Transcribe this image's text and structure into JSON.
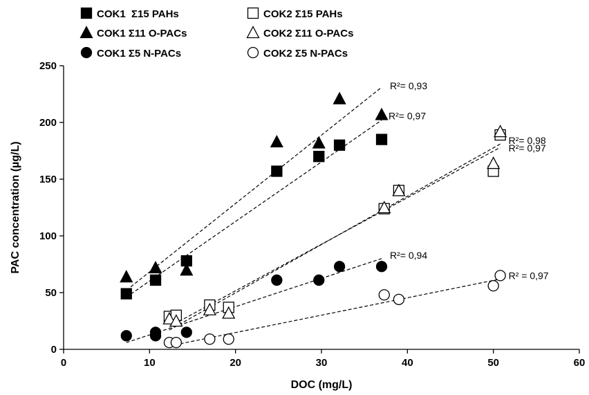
{
  "chart_data": {
    "type": "scatter",
    "title": "",
    "xlabel": "DOC (mg/L)",
    "ylabel": "PAC concentration (µg/L)",
    "xlim": [
      0,
      60
    ],
    "ylim": [
      0,
      250
    ],
    "xticks": [
      "0",
      "10",
      "20",
      "30",
      "40",
      "50",
      "60"
    ],
    "yticks": [
      "0",
      "50",
      "100",
      "150",
      "200",
      "250"
    ],
    "grid": false,
    "legend_position": "top-left",
    "series": [
      {
        "name": "COK1  Σ15 PAHs",
        "marker": "square",
        "filled": true,
        "points": [
          [
            7.3,
            49
          ],
          [
            10.7,
            61
          ],
          [
            14.3,
            78
          ],
          [
            24.8,
            157
          ],
          [
            29.7,
            170
          ],
          [
            32.1,
            180
          ],
          [
            37.0,
            185
          ]
        ],
        "fit": {
          "x": [
            7.3,
            37.0
          ],
          "y": [
            46,
            202
          ]
        },
        "r2_label": "R²= 0,97"
      },
      {
        "name": "COK1 Σ11 O-PACs",
        "marker": "triangle",
        "filled": true,
        "points": [
          [
            7.3,
            64
          ],
          [
            10.7,
            72
          ],
          [
            14.3,
            70
          ],
          [
            24.8,
            183
          ],
          [
            29.7,
            182
          ],
          [
            32.1,
            221
          ],
          [
            37.0,
            207
          ]
        ],
        "fit": {
          "x": [
            7.3,
            37.0
          ],
          "y": [
            52,
            231
          ]
        },
        "r2_label": "R²= 0,93"
      },
      {
        "name": "COK1 Σ5 N-PACs",
        "marker": "circle",
        "filled": true,
        "points": [
          [
            7.3,
            12
          ],
          [
            10.7,
            15
          ],
          [
            10.7,
            12
          ],
          [
            14.3,
            15
          ],
          [
            24.8,
            61
          ],
          [
            29.7,
            61
          ],
          [
            32.1,
            73
          ],
          [
            37.0,
            73
          ]
        ],
        "fit": {
          "x": [
            7.3,
            37.0
          ],
          "y": [
            6,
            80
          ]
        },
        "r2_label": "R²= 0,94"
      },
      {
        "name": "COK2 Σ15 PAHs",
        "marker": "square",
        "filled": false,
        "points": [
          [
            12.3,
            29
          ],
          [
            13.1,
            30
          ],
          [
            17.0,
            39
          ],
          [
            19.2,
            37
          ],
          [
            37.3,
            124
          ],
          [
            39.0,
            140
          ],
          [
            50.0,
            157
          ],
          [
            50.8,
            189
          ]
        ],
        "fit": {
          "x": [
            12.3,
            50.8
          ],
          "y": [
            17,
            181
          ]
        },
        "r2_label": "R²= 0,98"
      },
      {
        "name": "COK2 Σ11 O-PACs",
        "marker": "triangle",
        "filled": false,
        "points": [
          [
            12.3,
            27
          ],
          [
            13.1,
            25
          ],
          [
            17.0,
            35
          ],
          [
            19.2,
            32
          ],
          [
            37.3,
            125
          ],
          [
            39.0,
            140
          ],
          [
            50.0,
            164
          ],
          [
            50.8,
            192
          ]
        ],
        "fit": {
          "x": [
            12.3,
            50.8
          ],
          "y": [
            20,
            178
          ]
        },
        "r2_label": "R²= 0,97"
      },
      {
        "name": "COK2 Σ5 N-PACs",
        "marker": "circle",
        "filled": false,
        "points": [
          [
            12.3,
            6
          ],
          [
            13.1,
            6
          ],
          [
            17.0,
            9
          ],
          [
            19.2,
            9
          ],
          [
            37.3,
            48
          ],
          [
            39.0,
            44
          ],
          [
            50.0,
            56
          ],
          [
            50.8,
            65
          ]
        ],
        "fit": {
          "x": [
            12.3,
            50.8
          ],
          "y": [
            3,
            62
          ]
        },
        "r2_label": "R² = 0,97"
      }
    ]
  }
}
